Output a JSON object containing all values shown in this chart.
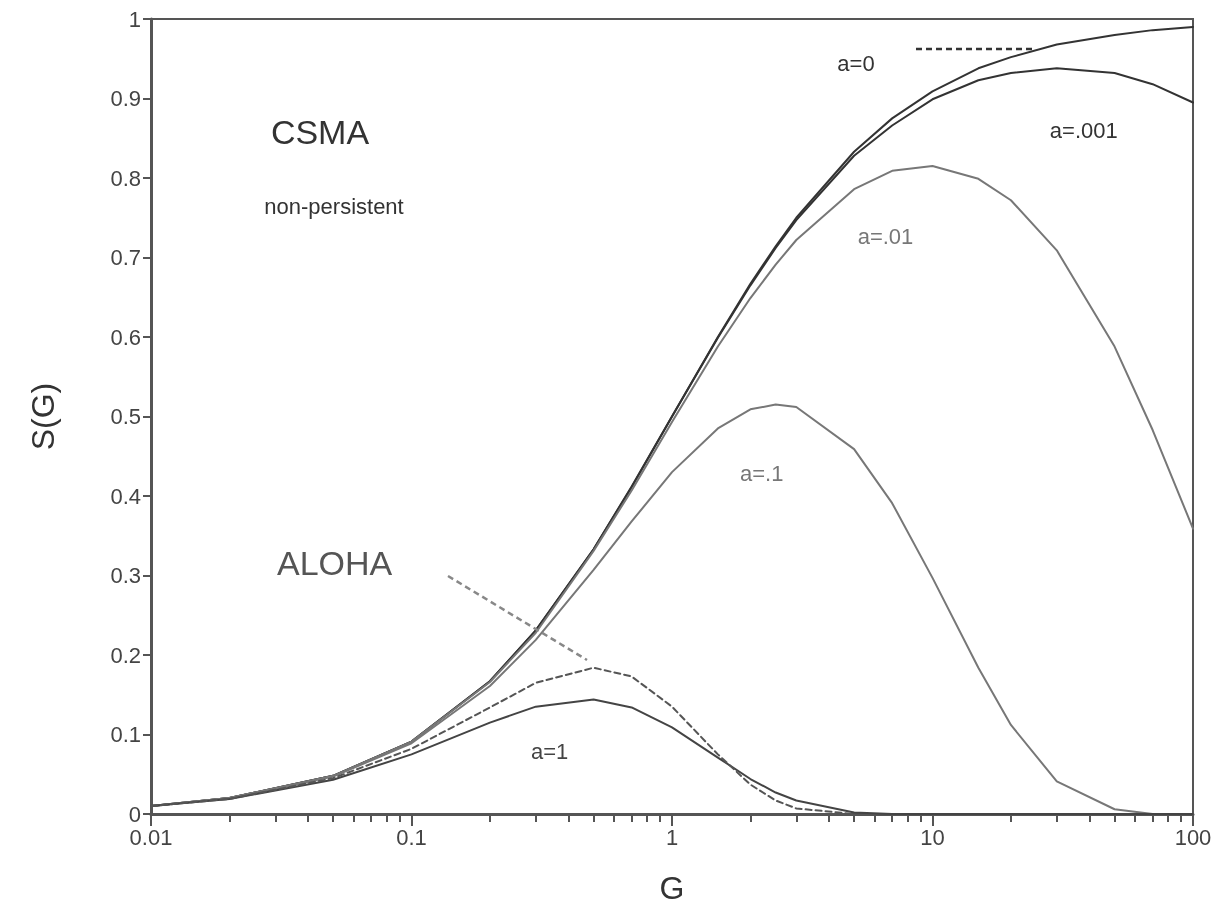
{
  "chart_data": {
    "type": "line",
    "xlabel": "G",
    "ylabel": "S(G)",
    "log": "x",
    "grid": false,
    "marker": "none",
    "line_style": "solid",
    "x": [
      0.01,
      0.02,
      0.05,
      0.1,
      0.2,
      0.3,
      0.5,
      0.7,
      1,
      1.5,
      2,
      2.5,
      3,
      5,
      7,
      10,
      15,
      20,
      30,
      50,
      70,
      100
    ],
    "xlim": [
      0.01,
      100
    ],
    "xticks": [
      0.01,
      0.1,
      1,
      10,
      100
    ],
    "ylim": [
      0,
      1
    ],
    "yticks": [
      0,
      0.1,
      0.2,
      0.3,
      0.4,
      0.5,
      0.6,
      0.7,
      0.8,
      0.9,
      1
    ],
    "series": [
      {
        "name": "a=0",
        "color": "#333333",
        "values": [
          0.01,
          0.02,
          0.048,
          0.091,
          0.167,
          0.231,
          0.333,
          0.412,
          0.5,
          0.6,
          0.667,
          0.714,
          0.75,
          0.833,
          0.875,
          0.909,
          0.938,
          0.952,
          0.968,
          0.98,
          0.986,
          0.99
        ]
      },
      {
        "name": "a=.001",
        "color": "#333333",
        "values": [
          0.01,
          0.02,
          0.048,
          0.091,
          0.167,
          0.231,
          0.333,
          0.411,
          0.5,
          0.599,
          0.665,
          0.712,
          0.747,
          0.828,
          0.866,
          0.899,
          0.923,
          0.932,
          0.938,
          0.932,
          0.918,
          0.895
        ]
      },
      {
        "name": "a=.01",
        "color": "#777777",
        "values": [
          0.01,
          0.02,
          0.048,
          0.091,
          0.166,
          0.228,
          0.331,
          0.407,
          0.493,
          0.588,
          0.649,
          0.691,
          0.722,
          0.786,
          0.809,
          0.815,
          0.799,
          0.772,
          0.709,
          0.588,
          0.483,
          0.359
        ]
      },
      {
        "name": "a=.1",
        "color": "#777777",
        "values": [
          0.01,
          0.02,
          0.047,
          0.089,
          0.161,
          0.219,
          0.307,
          0.368,
          0.43,
          0.485,
          0.509,
          0.515,
          0.512,
          0.459,
          0.391,
          0.297,
          0.184,
          0.112,
          0.041,
          0.006,
          0,
          0
        ]
      },
      {
        "name": "a=1",
        "color": "#444444",
        "values": [
          0.01,
          0.019,
          0.043,
          0.075,
          0.115,
          0.135,
          0.144,
          0.134,
          0.109,
          0.071,
          0.044,
          0.027,
          0.017,
          0.002,
          0,
          0,
          0,
          0,
          0,
          0,
          0,
          0
        ]
      },
      {
        "name": "ALOHA",
        "color": "#555555",
        "line_style": "dashed",
        "values": [
          0.01,
          0.019,
          0.045,
          0.082,
          0.134,
          0.165,
          0.184,
          0.173,
          0.135,
          0.075,
          0.037,
          0.017,
          0.007,
          0,
          null,
          null,
          null,
          null,
          null,
          null,
          null,
          null
        ]
      }
    ],
    "annotations": [
      "CSMA",
      "non-persistent"
    ]
  }
}
